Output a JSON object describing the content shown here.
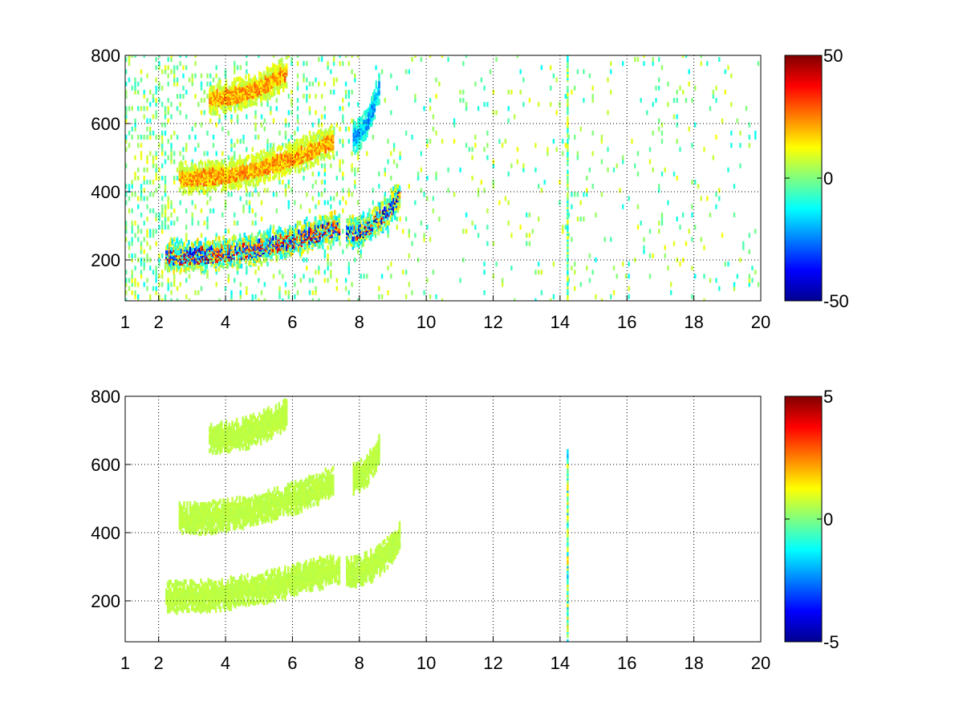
{
  "chart_data": [
    {
      "type": "heatmap",
      "title": "",
      "xlabel": "",
      "ylabel": "",
      "xlim": [
        1,
        20
      ],
      "ylim": [
        80,
        800
      ],
      "x_ticks": [
        1,
        2,
        4,
        6,
        8,
        10,
        12,
        14,
        16,
        18,
        20
      ],
      "x_tick_labels": [
        "1",
        "2",
        "4",
        "6",
        "8",
        "10",
        "12",
        "14",
        "16",
        "18",
        "20"
      ],
      "y_ticks": [
        200,
        400,
        600,
        800
      ],
      "y_tick_labels": [
        "200",
        "400",
        "600",
        "800"
      ],
      "grid": true,
      "colormap": "jet",
      "colorbar": {
        "min": -50,
        "max": 50,
        "tick_labels": [
          "50",
          "0",
          "-50"
        ]
      },
      "features": [
        {
          "kind": "band",
          "x_range": [
            2.2,
            7.4
          ],
          "y_start": 210,
          "y_end": 300,
          "value_range": [
            -45,
            45
          ]
        },
        {
          "kind": "band",
          "x_range": [
            2.6,
            7.2
          ],
          "y_start": 440,
          "y_end": 550,
          "value_range": [
            10,
            30
          ]
        },
        {
          "kind": "band",
          "x_range": [
            3.5,
            5.8
          ],
          "y_start": 675,
          "y_end": 750,
          "value_range": [
            10,
            30
          ]
        },
        {
          "kind": "band",
          "x_range": [
            7.6,
            9.2
          ],
          "y_start": 280,
          "y_end": 390,
          "value_range": [
            -50,
            40
          ]
        },
        {
          "kind": "band",
          "x_range": [
            7.8,
            8.6
          ],
          "y_start": 560,
          "y_end": 720,
          "value_range": [
            -30,
            -10
          ]
        },
        {
          "kind": "stripe",
          "x": 14.2,
          "y_range": [
            80,
            800
          ],
          "value_range": [
            -15,
            15
          ]
        }
      ]
    },
    {
      "type": "heatmap",
      "title": "",
      "xlabel": "",
      "ylabel": "",
      "xlim": [
        1,
        20
      ],
      "ylim": [
        80,
        800
      ],
      "x_ticks": [
        1,
        2,
        4,
        6,
        8,
        10,
        12,
        14,
        16,
        18,
        20
      ],
      "x_tick_labels": [
        "1",
        "2",
        "4",
        "6",
        "8",
        "10",
        "12",
        "14",
        "16",
        "18",
        "20"
      ],
      "y_ticks": [
        200,
        400,
        600,
        800
      ],
      "y_tick_labels": [
        "200",
        "400",
        "600",
        "800"
      ],
      "grid": true,
      "colormap": "jet",
      "colorbar": {
        "min": -5,
        "max": 5,
        "tick_labels": [
          "5",
          "0",
          "-5"
        ]
      },
      "features": [
        {
          "kind": "band",
          "x_range": [
            2.2,
            7.4
          ],
          "y_start": 210,
          "y_end": 300,
          "value_range": [
            0.5,
            0.7
          ]
        },
        {
          "kind": "band",
          "x_range": [
            2.6,
            7.2
          ],
          "y_start": 440,
          "y_end": 550,
          "value_range": [
            0.5,
            0.7
          ]
        },
        {
          "kind": "band",
          "x_range": [
            3.5,
            5.8
          ],
          "y_start": 675,
          "y_end": 750,
          "value_range": [
            0.5,
            0.7
          ]
        },
        {
          "kind": "band",
          "x_range": [
            7.6,
            9.2
          ],
          "y_start": 280,
          "y_end": 390,
          "value_range": [
            0.5,
            0.7
          ]
        },
        {
          "kind": "band",
          "x_range": [
            7.8,
            8.6
          ],
          "y_start": 560,
          "y_end": 650,
          "value_range": [
            0.5,
            0.7
          ]
        },
        {
          "kind": "stripe",
          "x": 14.2,
          "y_range": [
            80,
            640
          ],
          "value_range": [
            -2,
            2
          ]
        }
      ]
    }
  ]
}
